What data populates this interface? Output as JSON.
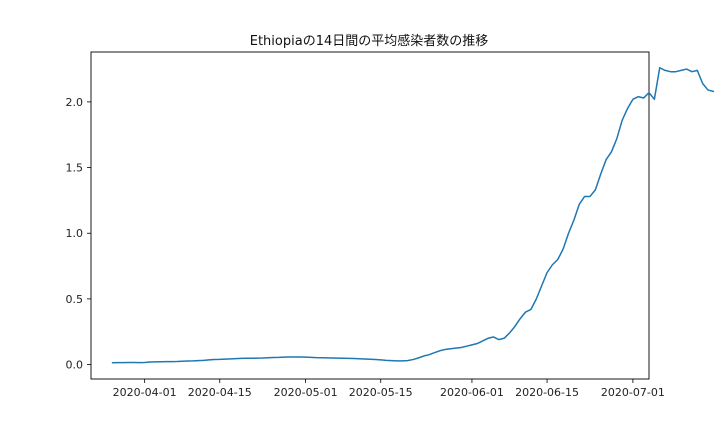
{
  "chart_data": {
    "type": "line",
    "title": "Ethiopiaの14日間の平均感染者数の推移",
    "xlabel": "",
    "ylabel": "",
    "x_start": "2020-03-26",
    "x_end": "2020-06-30",
    "xlim": [
      "2020-03-22",
      "2020-07-04"
    ],
    "ylim": [
      -0.11,
      2.38
    ],
    "x_ticks": [
      "2020-04-01",
      "2020-04-15",
      "2020-05-01",
      "2020-05-15",
      "2020-06-01",
      "2020-06-15",
      "2020-07-01"
    ],
    "y_ticks": [
      0.0,
      0.5,
      1.0,
      1.5,
      2.0
    ],
    "y_tick_labels": [
      "0.0",
      "0.5",
      "1.0",
      "1.5",
      "2.0"
    ],
    "grid": false,
    "line_color": "#1f77b4",
    "series": [
      {
        "values": [
          0.014,
          0.015,
          0.015,
          0.016,
          0.016,
          0.015,
          0.016,
          0.019,
          0.02,
          0.021,
          0.022,
          0.022,
          0.023,
          0.025,
          0.027,
          0.028,
          0.03,
          0.032,
          0.036,
          0.038,
          0.039,
          0.041,
          0.043,
          0.045,
          0.047,
          0.048,
          0.048,
          0.049,
          0.05,
          0.052,
          0.054,
          0.055,
          0.057,
          0.058,
          0.058,
          0.058,
          0.057,
          0.055,
          0.053,
          0.052,
          0.051,
          0.05,
          0.049,
          0.048,
          0.047,
          0.046,
          0.044,
          0.042,
          0.04,
          0.038,
          0.036,
          0.032,
          0.03,
          0.028,
          0.028,
          0.03,
          0.038,
          0.05,
          0.065,
          0.075,
          0.09,
          0.105,
          0.115,
          0.12,
          0.125,
          0.13,
          0.14,
          0.15,
          0.16,
          0.18,
          0.2,
          0.21,
          0.19,
          0.2,
          0.24,
          0.29,
          0.35,
          0.4,
          0.42,
          0.5,
          0.6,
          0.7,
          0.76,
          0.8,
          0.88,
          1.0,
          1.1,
          1.22,
          1.28,
          1.28,
          1.33,
          1.45,
          1.56,
          1.62,
          1.72,
          1.86,
          1.95,
          2.02,
          2.04,
          2.03,
          2.07,
          2.02,
          2.26,
          2.24,
          2.23,
          2.23,
          2.24,
          2.25,
          2.23,
          2.24,
          2.14,
          2.09,
          2.08
        ]
      }
    ]
  }
}
